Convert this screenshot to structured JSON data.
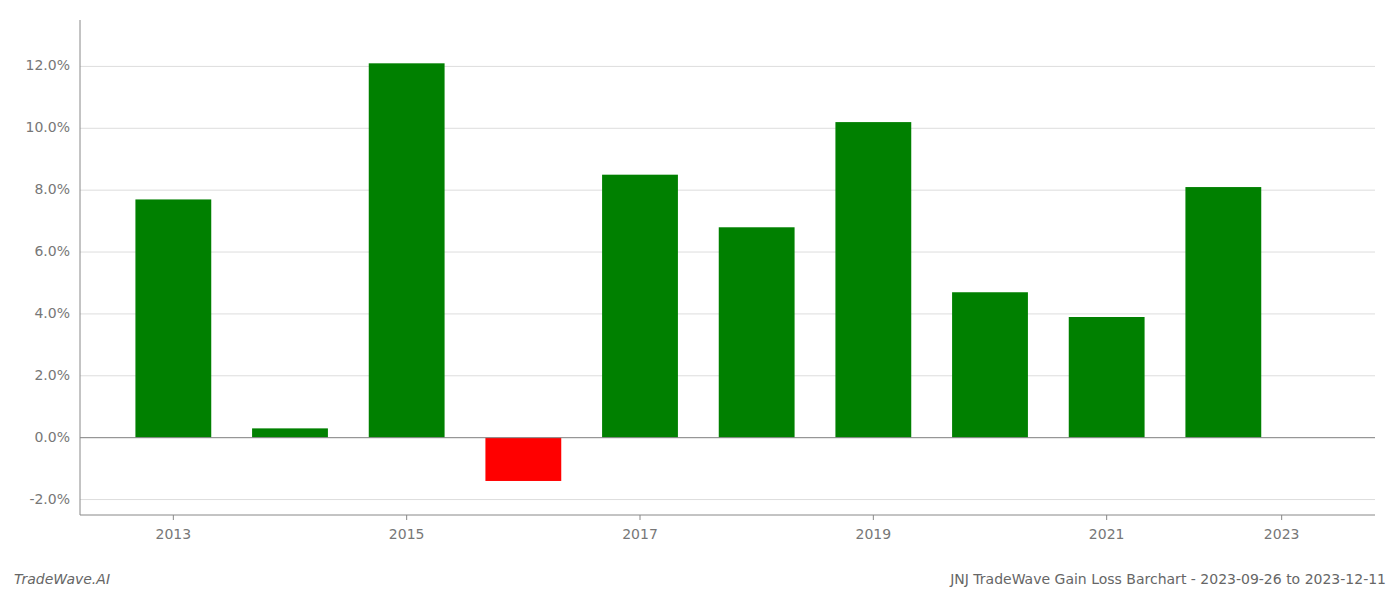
{
  "chart_data": {
    "type": "bar",
    "title": "JNJ TradeWave Gain Loss Barchart - 2023-09-26 to 2023-12-11",
    "annotations": [
      "TradeWave.AI"
    ],
    "x": [
      2013,
      2014,
      2015,
      2016,
      2017,
      2018,
      2019,
      2020,
      2021,
      2022
    ],
    "values": [
      0.077,
      0.003,
      0.121,
      -0.014,
      0.085,
      0.068,
      0.102,
      0.047,
      0.039,
      0.081
    ],
    "colors": [
      "#008000",
      "#008000",
      "#008000",
      "#ff0000",
      "#008000",
      "#008000",
      "#008000",
      "#008000",
      "#008000",
      "#008000"
    ],
    "xlim": [
      2012.2,
      2023.3
    ],
    "xticks": [
      2013,
      2015,
      2017,
      2019,
      2021,
      {
        "value": 2022.5,
        "label": "2023"
      }
    ],
    "ylim": [
      -0.025,
      0.135
    ],
    "yticks": [
      {
        "value": -0.02,
        "label": "-2.0%"
      },
      {
        "value": 0.0,
        "label": "0.0%"
      },
      {
        "value": 0.02,
        "label": "2.0%"
      },
      {
        "value": 0.04,
        "label": "4.0%"
      },
      {
        "value": 0.06,
        "label": "6.0%"
      },
      {
        "value": 0.08,
        "label": "8.0%"
      },
      {
        "value": 0.1,
        "label": "10.0%"
      },
      {
        "value": 0.12,
        "label": "12.0%"
      }
    ],
    "grid": true
  }
}
